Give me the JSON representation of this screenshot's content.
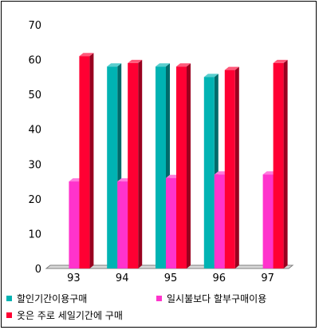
{
  "chart_data": {
    "type": "bar",
    "categories": [
      "93",
      "94",
      "95",
      "96",
      "97"
    ],
    "series": [
      {
        "name": "할인기간이용구매",
        "color": "#00b3b3",
        "values": [
          null,
          58,
          58,
          55,
          null
        ]
      },
      {
        "name": "일시불보다 할부구매이용",
        "color": "#ff33cc",
        "values": [
          25,
          25,
          26,
          27,
          27
        ]
      },
      {
        "name": "옷은 주로 세일기간에 구매",
        "color": "#ff0033",
        "values": [
          61,
          59,
          58,
          57,
          59
        ]
      }
    ],
    "ylim": [
      0,
      70
    ],
    "yticks": [
      "0",
      "10",
      "20",
      "30",
      "40",
      "50",
      "60",
      "70"
    ],
    "grid": false,
    "legend_position": "bottom"
  }
}
